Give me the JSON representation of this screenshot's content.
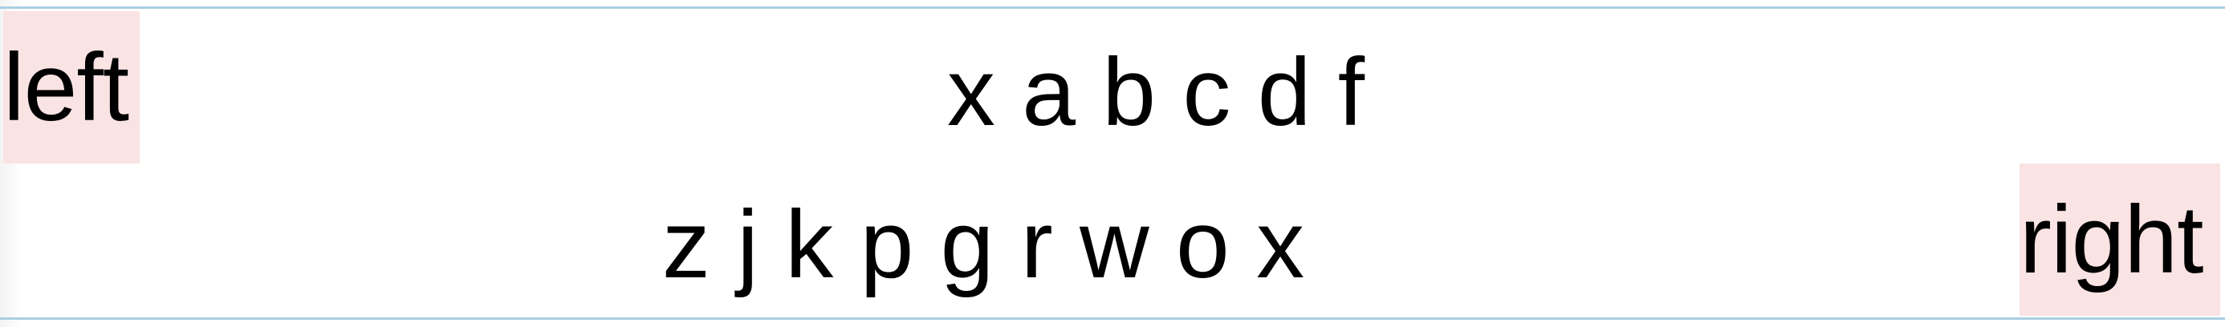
{
  "floats": {
    "left_label": "left",
    "right_label": "right"
  },
  "lines": {
    "line1": "x a b c d f",
    "line2": "z j k p g r w o x"
  },
  "colors": {
    "float_background": "#fae3e3",
    "rule": "#a9cfe3",
    "text": "#000000"
  }
}
